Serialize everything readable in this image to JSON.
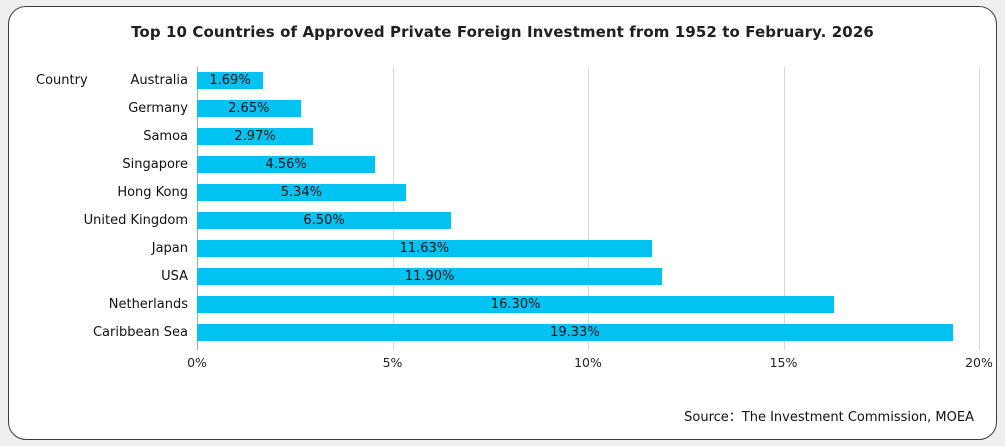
{
  "frame": {
    "source": "Source：The Investment Commission, MOEA"
  },
  "chart_data": {
    "type": "bar",
    "orientation": "horizontal",
    "title": "Top 10 Countries of Approved Private Foreign Investment from 1952 to February. 2026",
    "axis_label": "Country",
    "categories": [
      "Australia",
      "Germany",
      "Samoa",
      "Singapore",
      "Hong Kong",
      "United Kingdom",
      "Japan",
      "USA",
      "Netherlands",
      "Caribbean Sea"
    ],
    "values": [
      1.69,
      2.65,
      2.97,
      4.56,
      5.34,
      6.5,
      11.63,
      11.9,
      16.3,
      19.33
    ],
    "value_labels": [
      "1.69%",
      "2.65%",
      "2.97%",
      "4.56%",
      "5.34%",
      "6.50%",
      "11.63%",
      "11.90%",
      "16.30%",
      "19.33%"
    ],
    "xlim": [
      0,
      20
    ],
    "x_tick_values": [
      0,
      5,
      10,
      15,
      20
    ],
    "x_tick_labels": [
      "0%",
      "5%",
      "10%",
      "15%",
      "20%"
    ],
    "bar_color": "#00C3F2",
    "gridline_color": "#d9d9d9",
    "axis_line_color": "#a6a6a6",
    "grid": "vertical-only",
    "legend": "none"
  }
}
